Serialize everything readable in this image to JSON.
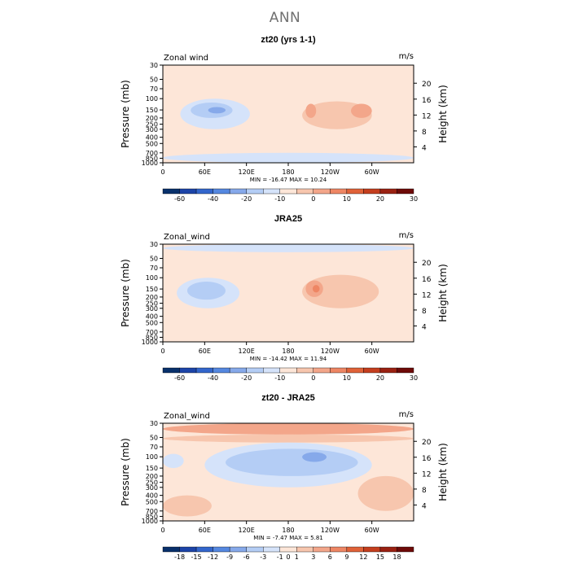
{
  "figure": {
    "title": "ANN"
  },
  "colors": {
    "scale": [
      "#08306b",
      "#1c44a8",
      "#3366cc",
      "#5588e0",
      "#86a9ea",
      "#b4cdf5",
      "#d5e3fa",
      "#fde6d8",
      "#f7c6ae",
      "#f3a68a",
      "#ee8664",
      "#e06238",
      "#c43e1e",
      "#9a2112",
      "#6e0a08"
    ]
  },
  "chart_data": [
    {
      "type": "contour",
      "title": "zt20 (yrs 1-1)",
      "field_label": "Zonal wind",
      "units": "m/s",
      "ylabel": "Pressure (mb)",
      "ylabel_right": "Height (km)",
      "x_ticks": [
        "0",
        "60E",
        "120E",
        "180",
        "120W",
        "60W"
      ],
      "x_tick_values": [
        0,
        60,
        120,
        180,
        240,
        300
      ],
      "xlim": [
        0,
        360
      ],
      "y_ticks": [
        "30",
        "50",
        "70",
        "100",
        "150",
        "200",
        "250",
        "300",
        "400",
        "500",
        "700",
        "850",
        "1000"
      ],
      "y_tick_values": [
        30,
        50,
        70,
        100,
        150,
        200,
        250,
        300,
        400,
        500,
        700,
        850,
        1000
      ],
      "ylim": [
        1000,
        30
      ],
      "y_right_ticks": [
        "4",
        "8",
        "12",
        "16",
        "20"
      ],
      "y_right_values": [
        4,
        8,
        12,
        16,
        20
      ],
      "stats": "MIN =  -16.47   MAX =  10.24",
      "colorbar_labels": [
        "-60",
        "-40",
        "-20",
        "-10",
        "0",
        "10",
        "20",
        "30"
      ],
      "colorbar_label_positions": [
        1,
        3,
        5,
        7,
        9,
        11,
        13,
        15
      ],
      "blobs": [
        {
          "x": [
            25,
            125
          ],
          "p": [
            100,
            300
          ],
          "level": -1
        },
        {
          "x": [
            40,
            100
          ],
          "p": [
            115,
            200
          ],
          "level": -2
        },
        {
          "x": [
            65,
            90
          ],
          "p": [
            135,
            170
          ],
          "level": -3
        },
        {
          "x": [
            200,
            300
          ],
          "p": [
            110,
            300
          ],
          "level": 1
        },
        {
          "x": [
            205,
            220
          ],
          "p": [
            120,
            200
          ],
          "level": 2
        },
        {
          "x": [
            270,
            300
          ],
          "p": [
            120,
            200
          ],
          "level": 2
        },
        {
          "x": [
            0,
            360
          ],
          "p": [
            700,
            1000
          ],
          "level": -1
        }
      ]
    },
    {
      "type": "contour",
      "title": "JRA25",
      "field_label": "Zonal_wind",
      "units": "m/s",
      "ylabel": "Pressure (mb)",
      "ylabel_right": "Height (km)",
      "x_ticks": [
        "0",
        "60E",
        "120E",
        "180",
        "120W",
        "60W"
      ],
      "x_tick_values": [
        0,
        60,
        120,
        180,
        240,
        300
      ],
      "xlim": [
        0,
        360
      ],
      "y_ticks": [
        "30",
        "50",
        "70",
        "100",
        "150",
        "200",
        "250",
        "300",
        "400",
        "500",
        "700",
        "850",
        "1000"
      ],
      "y_tick_values": [
        30,
        50,
        70,
        100,
        150,
        200,
        250,
        300,
        400,
        500,
        700,
        850,
        1000
      ],
      "ylim": [
        1000,
        30
      ],
      "y_right_ticks": [
        "4",
        "8",
        "12",
        "16",
        "20"
      ],
      "y_right_values": [
        4,
        8,
        12,
        16,
        20
      ],
      "stats": "MIN =  -14.42   MAX =  11.94",
      "colorbar_labels": [
        "-60",
        "-40",
        "-20",
        "-10",
        "0",
        "10",
        "20",
        "30"
      ],
      "colorbar_label_positions": [
        1,
        3,
        5,
        7,
        9,
        11,
        13,
        15
      ],
      "blobs": [
        {
          "x": [
            0,
            360
          ],
          "p": [
            30,
            40
          ],
          "level": -1
        },
        {
          "x": [
            20,
            110
          ],
          "p": [
            100,
            300
          ],
          "level": -1
        },
        {
          "x": [
            35,
            90
          ],
          "p": [
            115,
            220
          ],
          "level": -2
        },
        {
          "x": [
            200,
            310
          ],
          "p": [
            90,
            300
          ],
          "level": 1
        },
        {
          "x": [
            205,
            230
          ],
          "p": [
            110,
            200
          ],
          "level": 2
        },
        {
          "x": [
            215,
            225
          ],
          "p": [
            130,
            170
          ],
          "level": 3
        }
      ]
    },
    {
      "type": "contour",
      "title": "zt20 - JRA25",
      "field_label": "Zonal_wind",
      "units": "m/s",
      "ylabel": "Pressure (mb)",
      "ylabel_right": "Height (km)",
      "x_ticks": [
        "0",
        "60E",
        "120E",
        "180",
        "120W",
        "60W"
      ],
      "x_tick_values": [
        0,
        60,
        120,
        180,
        240,
        300
      ],
      "xlim": [
        0,
        360
      ],
      "y_ticks": [
        "30",
        "50",
        "70",
        "100",
        "150",
        "200",
        "250",
        "300",
        "400",
        "500",
        "700",
        "850",
        "1000"
      ],
      "y_tick_values": [
        30,
        50,
        70,
        100,
        150,
        200,
        250,
        300,
        400,
        500,
        700,
        850,
        1000
      ],
      "ylim": [
        1000,
        30
      ],
      "y_right_ticks": [
        "4",
        "8",
        "12",
        "16",
        "20"
      ],
      "y_right_values": [
        4,
        8,
        12,
        16,
        20
      ],
      "stats": "MIN =  -7.47   MAX =   5.81",
      "colorbar_labels": [
        "-18",
        "-15",
        "-12",
        "-9",
        "-6",
        "-3",
        "-1",
        "0",
        "1",
        "3",
        "6",
        "9",
        "12",
        "15",
        "18"
      ],
      "colorbar_label_positions": [
        1,
        2,
        3,
        4,
        5,
        6,
        7,
        7.5,
        8,
        9,
        10,
        11,
        12,
        13,
        14
      ],
      "blobs": [
        {
          "x": [
            0,
            360
          ],
          "p": [
            30,
            45
          ],
          "level": 2
        },
        {
          "x": [
            0,
            360
          ],
          "p": [
            45,
            60
          ],
          "level": 1
        },
        {
          "x": [
            60,
            300
          ],
          "p": [
            60,
            300
          ],
          "level": -1
        },
        {
          "x": [
            90,
            280
          ],
          "p": [
            75,
            200
          ],
          "level": -2
        },
        {
          "x": [
            200,
            235
          ],
          "p": [
            85,
            120
          ],
          "level": -3
        },
        {
          "x": [
            120,
            175
          ],
          "p": [
            90,
            150
          ],
          "level": -2
        },
        {
          "x": [
            280,
            360
          ],
          "p": [
            200,
            700
          ],
          "level": 1
        },
        {
          "x": [
            0,
            70
          ],
          "p": [
            400,
            850
          ],
          "level": 1
        },
        {
          "x": [
            0,
            30
          ],
          "p": [
            90,
            150
          ],
          "level": -1
        }
      ]
    }
  ]
}
